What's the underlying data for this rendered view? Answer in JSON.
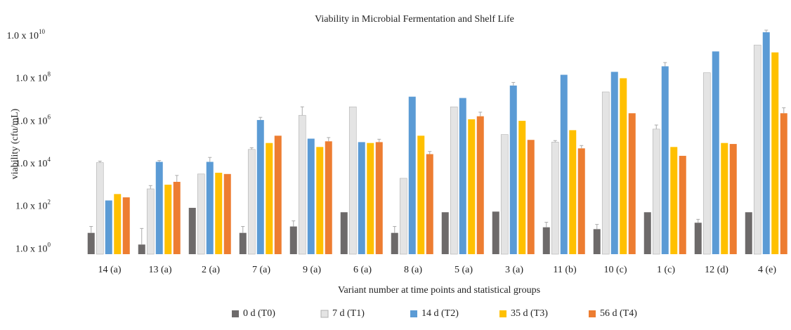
{
  "chart_data": {
    "type": "bar",
    "title": "Viability in Microbial Fermentation and Shelf Life",
    "x_label": "Variant number at time points and statistical groups",
    "y_label": "viability (cfu/mL)",
    "log_scale": true,
    "grid": false,
    "legend": "bottom",
    "categories": [
      "14 (a)",
      "13 (a)",
      "2 (a)",
      "7 (a)",
      "9 (a)",
      "6 (a)",
      "8 (a)",
      "5 (a)",
      "3 (a)",
      "11 (b)",
      "10 (c)",
      "1 (c)",
      "12 (d)",
      "4 (e)"
    ],
    "ylim": [
      0.6,
      25000000000
    ],
    "yticks": [
      {
        "value": 1,
        "label": "1.0 x 10",
        "exponent": "0"
      },
      {
        "value": 100,
        "label": "1.0 x 10",
        "exponent": "2"
      },
      {
        "value": 10000,
        "label": "1.0 x 10",
        "exponent": "4"
      },
      {
        "value": 1000000,
        "label": "1.0 x 10",
        "exponent": "6"
      },
      {
        "value": 100000000,
        "label": "1.0 x 10",
        "exponent": "8"
      },
      {
        "value": 10000000000,
        "label": "1.0 x 10",
        "exponent": "10"
      }
    ],
    "series": [
      {
        "name": "0 d (T0)",
        "color": "#6d6a6a",
        "values": [
          6,
          1.7,
          90,
          6,
          12,
          56,
          6,
          56,
          60,
          11,
          9,
          56,
          18,
          56
        ],
        "errors": [
          6,
          8,
          0,
          6,
          10,
          0,
          6,
          0,
          0,
          8,
          6,
          0,
          8,
          0
        ]
      },
      {
        "name": "7 d (T1)",
        "color": "#e4e4e4",
        "values": [
          12000,
          700,
          3500,
          50000,
          2000000,
          5000000,
          2200,
          5000000,
          250000,
          110000,
          25000000,
          450000,
          200000000,
          4000000000
        ],
        "errors": [
          2000,
          300,
          0,
          10000,
          3000000,
          0,
          0,
          0,
          0,
          20000,
          0,
          250000,
          0,
          0
        ]
      },
      {
        "name": "14 d (T2)",
        "color": "#5b9bd5",
        "values": [
          200,
          13000,
          13000,
          1200000,
          160000,
          110000,
          15000000,
          13000000,
          50000000,
          160000000,
          220000000,
          400000000,
          2000000000,
          16000000000
        ],
        "errors": [
          0,
          2000,
          8000,
          400000,
          0,
          0,
          0,
          0,
          20000000,
          0,
          0,
          200000000,
          0,
          4000000000
        ]
      },
      {
        "name": "35 d (T3)",
        "color": "#ffc000",
        "values": [
          400,
          1100,
          4000,
          100000,
          65000,
          100000,
          220000,
          1300000,
          1100000,
          400000,
          110000000,
          65000,
          100000,
          1800000000
        ],
        "errors": [
          0,
          0,
          0,
          0,
          0,
          0,
          0,
          0,
          0,
          0,
          0,
          0,
          0,
          0
        ]
      },
      {
        "name": "56 d (T4)",
        "color": "#ed7d31",
        "values": [
          280,
          1500,
          3500,
          220000,
          120000,
          110000,
          30000,
          1800000,
          140000,
          56000,
          2500000,
          25000,
          90000,
          2500000
        ],
        "errors": [
          0,
          1500,
          0,
          0,
          60000,
          40000,
          10000,
          1000000,
          0,
          20000,
          0,
          0,
          0,
          2000000
        ]
      }
    ]
  }
}
